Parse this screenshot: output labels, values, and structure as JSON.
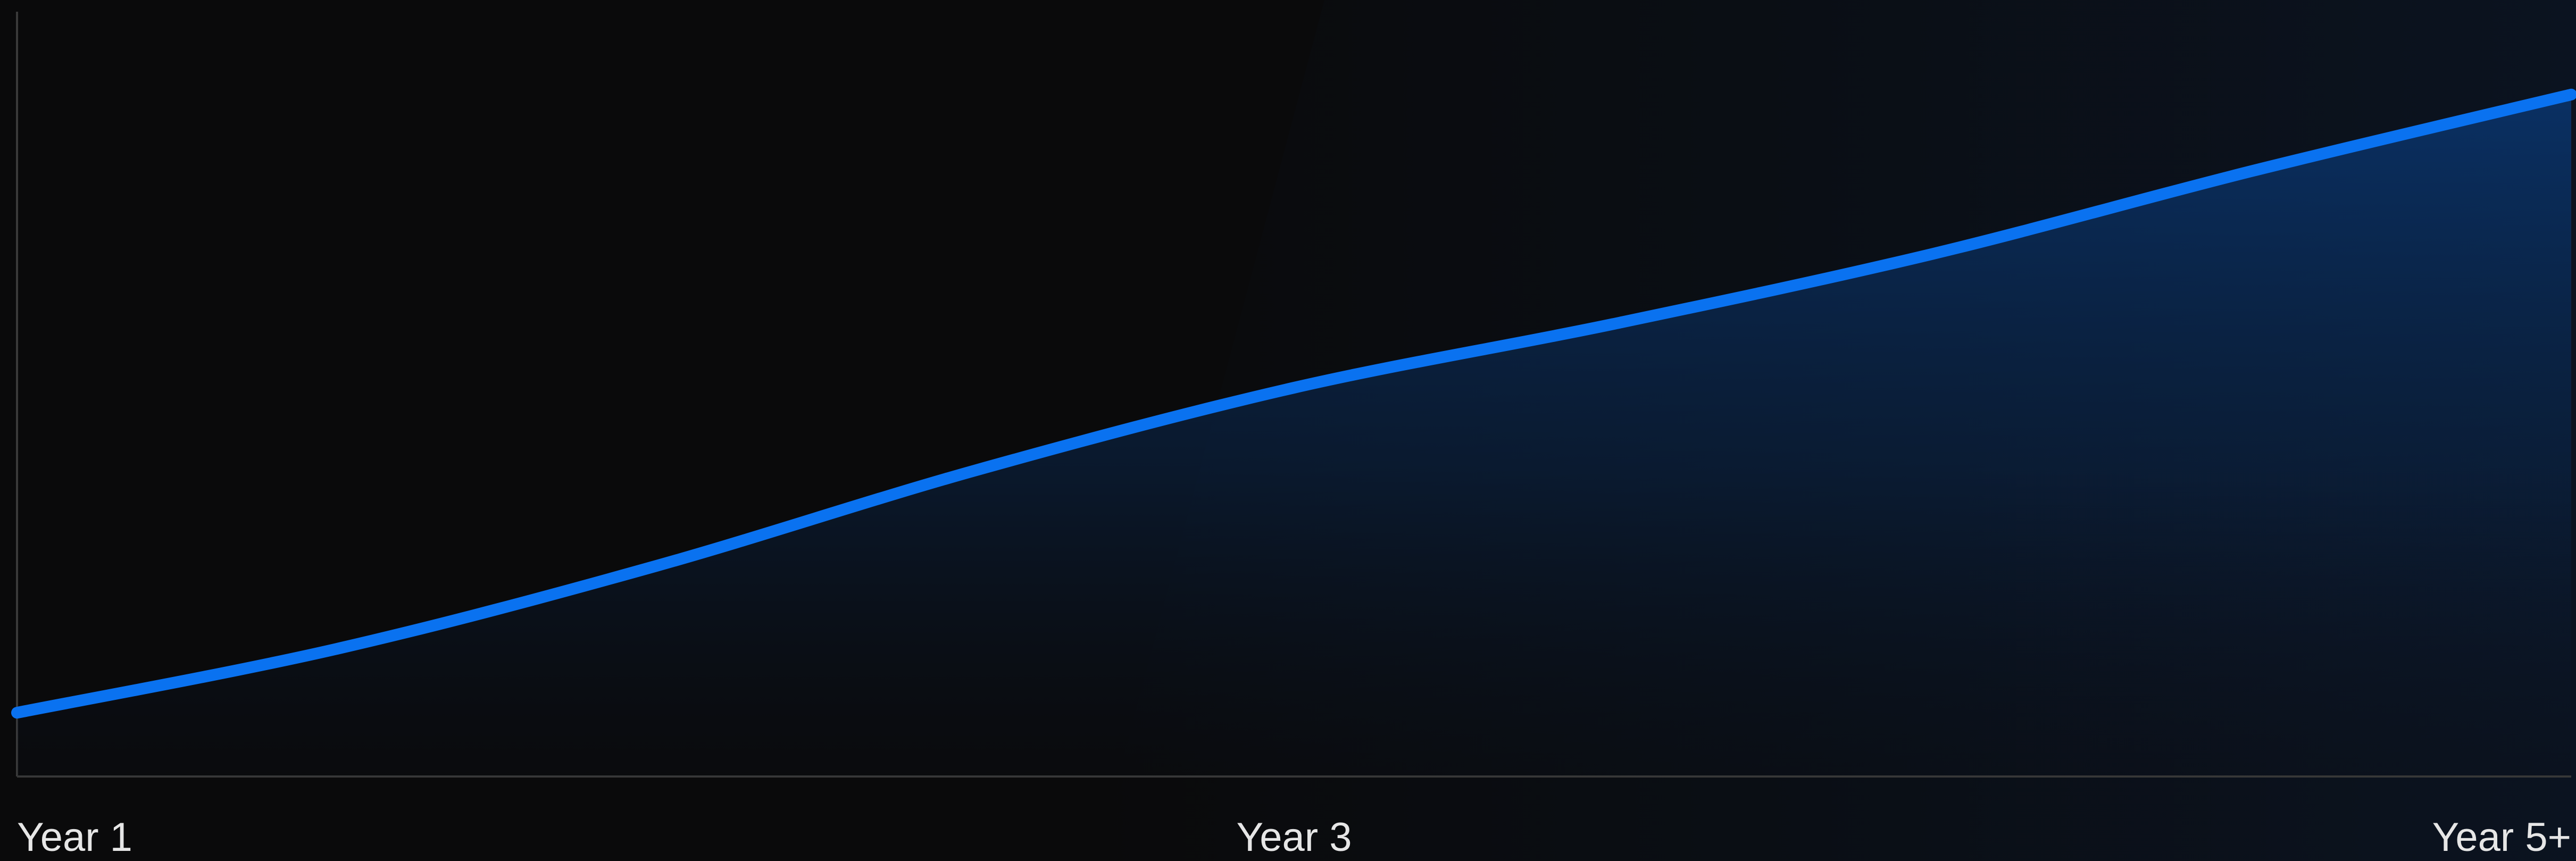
{
  "chart_data": {
    "type": "area",
    "title": "",
    "xlabel": "",
    "ylabel": "",
    "x_tick_labels": [
      "Year 1",
      "Year 3",
      "Year 5+"
    ],
    "x": [
      1,
      1.5,
      2,
      2.5,
      3,
      3.5,
      4,
      4.5,
      5
    ],
    "series": [
      {
        "name": "",
        "values": [
          10,
          20,
          33,
          48,
          61,
          71,
          82,
          95,
          107
        ]
      }
    ],
    "xlim": [
      1,
      5
    ],
    "ylim": [
      0,
      120
    ],
    "grid": false,
    "legend": "none",
    "line_color": "#0a72f0",
    "fill_color": "#0a3a7a",
    "background_color": "#0a0a0b",
    "axis_color": "#3a3a3a",
    "label_color": "#e6e6e6"
  }
}
